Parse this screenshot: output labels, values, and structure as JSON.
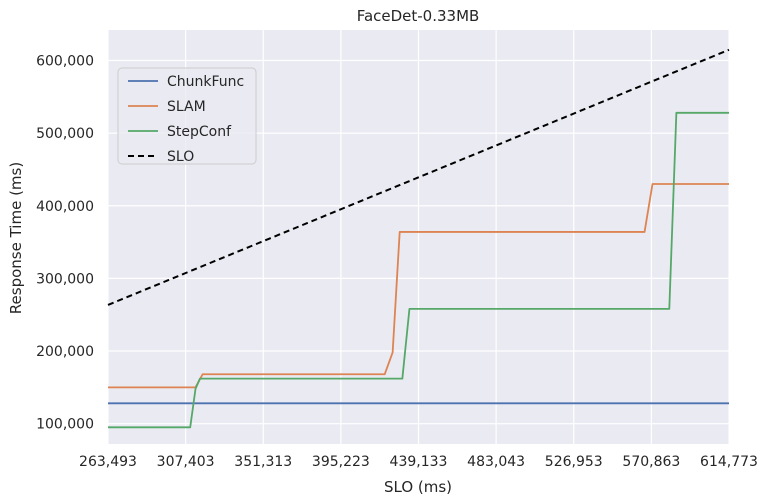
{
  "chart_data": {
    "type": "line",
    "title": "FaceDet-0.33MB",
    "xlabel": "SLO (ms)",
    "ylabel": "Response Time (ms)",
    "xlim": [
      263493,
      614773
    ],
    "ylim": [
      72000,
      642000
    ],
    "xticks": [
      263493,
      307403,
      351313,
      395223,
      439133,
      483043,
      526953,
      570863,
      614773
    ],
    "xtick_labels": [
      "263,493",
      "307,403",
      "351,313",
      "395,223",
      "439,133",
      "483,043",
      "526,953",
      "570,863",
      "614,773"
    ],
    "yticks": [
      100000,
      200000,
      300000,
      400000,
      500000,
      600000
    ],
    "ytick_labels": [
      "100,000",
      "200,000",
      "300,000",
      "400,000",
      "500,000",
      "600,000"
    ],
    "grid": true,
    "legend_position": "upper-left",
    "series": [
      {
        "name": "ChunkFunc",
        "color": "#4c72b0",
        "dash": "solid",
        "x": [
          263493,
          614773
        ],
        "y": [
          128000,
          128000
        ]
      },
      {
        "name": "SLAM",
        "color": "#dd8452",
        "dash": "solid",
        "x": [
          263493,
          313000,
          317000,
          420000,
          424500,
          428500,
          567000,
          571500,
          614773
        ],
        "y": [
          150000,
          150000,
          168000,
          168000,
          198000,
          364000,
          364000,
          430000,
          430000
        ]
      },
      {
        "name": "StepConf",
        "color": "#55a868",
        "dash": "solid",
        "x": [
          263493,
          310000,
          313000,
          315500,
          430000,
          434000,
          581000,
          585000,
          614773
        ],
        "y": [
          95000,
          95000,
          148000,
          162000,
          162000,
          258000,
          258000,
          528000,
          528000
        ]
      },
      {
        "name": "SLO",
        "color": "#000000",
        "dash": "dashed",
        "x": [
          263493,
          614773
        ],
        "y": [
          263493,
          614773
        ]
      }
    ]
  }
}
